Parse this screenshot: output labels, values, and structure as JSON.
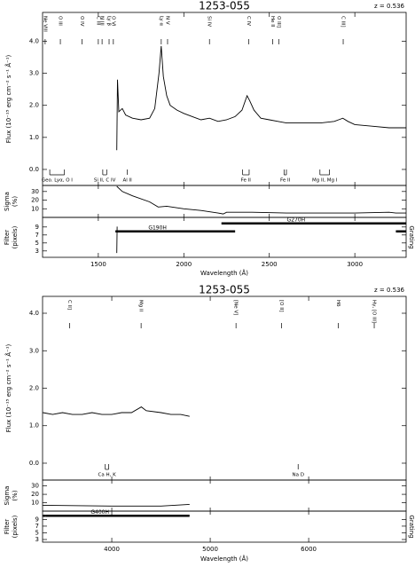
{
  "chart_data": [
    {
      "type": "line",
      "title": "1253-055",
      "annotation": "z = 0.536",
      "ylabel": "Flux (10⁻¹⁵ erg cm⁻² s⁻¹ Å⁻¹)",
      "xlabel": "Wavelength (Å)",
      "xlim": [
        1174,
        3300
      ],
      "xticks": [
        1500,
        2000,
        2500,
        3000
      ],
      "ylim": [
        -0.5,
        4.9
      ],
      "yticks": [
        {
          "value": 0,
          "label": "0.0"
        },
        {
          "value": 1,
          "label": "1.0"
        },
        {
          "value": 2,
          "label": "2.0"
        },
        {
          "value": 3,
          "label": "3.0"
        },
        {
          "value": 4,
          "label": "4.0"
        }
      ],
      "x": [
        1608,
        1612,
        1620,
        1640,
        1660,
        1700,
        1750,
        1800,
        1830,
        1855,
        1868,
        1880,
        1900,
        1920,
        1960,
        2000,
        2050,
        2100,
        2150,
        2200,
        2250,
        2300,
        2340,
        2370,
        2385,
        2410,
        2450,
        2500,
        2550,
        2600,
        2700,
        2800,
        2880,
        2930,
        2960,
        3000,
        3100,
        3200,
        3300
      ],
      "values": [
        0.6,
        2.8,
        1.8,
        1.9,
        1.7,
        1.6,
        1.55,
        1.6,
        1.9,
        3.0,
        3.85,
        2.9,
        2.3,
        2.0,
        1.85,
        1.75,
        1.65,
        1.55,
        1.6,
        1.5,
        1.55,
        1.65,
        1.85,
        2.3,
        2.15,
        1.85,
        1.6,
        1.55,
        1.5,
        1.45,
        1.45,
        1.45,
        1.5,
        1.6,
        1.5,
        1.4,
        1.35,
        1.3,
        1.3
      ],
      "emission_lines": [
        {
          "label": "Ne VIII",
          "x": 1189
        },
        {
          "label": "O III",
          "x": 1278
        },
        {
          "label": "O IV",
          "x": 1405
        },
        {
          "label": "C III",
          "x": 1500
        },
        {
          "label": "N III",
          "x": 1522
        },
        {
          "label": "Ly β",
          "x": 1563
        },
        {
          "label": "O VI",
          "x": 1588
        },
        {
          "label": "Ly α",
          "x": 1868
        },
        {
          "label": "N V",
          "x": 1905
        },
        {
          "label": "Si IV",
          "x": 2150
        },
        {
          "label": "C IV",
          "x": 2380
        },
        {
          "label": "He II",
          "x": 2520
        },
        {
          "label": "O III]",
          "x": 2555
        },
        {
          "label": "C III]",
          "x": 2932
        }
      ],
      "absorption_lines": [
        {
          "label": "Geo. Lyα, O I",
          "x": [
            1216,
            1302
          ]
        },
        {
          "label": "Si II, C IV",
          "x": [
            1526,
            1549
          ]
        },
        {
          "label": "Al II",
          "x": [
            1670
          ]
        },
        {
          "label": "Fe II",
          "x": [
            2344,
            2382
          ]
        },
        {
          "label": "Fe II",
          "x": [
            2586,
            2600
          ]
        },
        {
          "label": "Mg II, Mg I",
          "x": [
            2796,
            2852
          ]
        }
      ],
      "sigma": {
        "label": [
          "Sigma",
          "(%)"
        ],
        "ylim": [
          0,
          37
        ],
        "yticks": [
          10,
          20,
          30
        ],
        "x": [
          1608,
          1640,
          1700,
          1800,
          1850,
          1900,
          2000,
          2100,
          2200,
          2230,
          2250,
          2400,
          2600,
          2800,
          3000,
          3200,
          3240,
          3300
        ],
        "values": [
          36,
          30,
          25,
          18,
          12,
          13,
          10,
          8,
          5,
          4,
          6,
          6,
          5,
          5,
          5,
          6,
          5,
          5
        ]
      },
      "filter": {
        "label": [
          "Filter",
          "(pixels)"
        ],
        "grating_label": "Grating",
        "ylim": [
          1.4,
          11.4
        ],
        "yticks": [
          3,
          5,
          7,
          9
        ],
        "x": [
          1608,
          1610,
          1612
        ],
        "values": [
          2.5,
          9,
          9
        ],
        "gratings": [
          {
            "name": "G190H",
            "range": [
              1600,
              2300
            ]
          },
          {
            "name": "G270H",
            "range": [
              2220,
              3300
            ]
          },
          {
            "range": [
              3240,
              3300
            ]
          }
        ]
      }
    },
    {
      "type": "line",
      "title": "1253-055",
      "annotation": "z = 0.536",
      "ylabel": "Flux (10⁻¹⁵ erg cm⁻² s⁻¹ Å⁻¹)",
      "xlabel": "Wavelength (Å)",
      "xlim": [
        3297,
        6990
      ],
      "xticks": [
        4000,
        5000,
        6000
      ],
      "ylim": [
        -0.45,
        4.45
      ],
      "yticks": [
        {
          "value": 0,
          "label": "0.0"
        },
        {
          "value": 1,
          "label": "1.0"
        },
        {
          "value": 2,
          "label": "2.0"
        },
        {
          "value": 3,
          "label": "3.0"
        },
        {
          "value": 4,
          "label": "4.0"
        }
      ],
      "x": [
        3300,
        3400,
        3500,
        3600,
        3700,
        3800,
        3900,
        4000,
        4100,
        4200,
        4300,
        4350,
        4500,
        4600,
        4700,
        4790
      ],
      "values": [
        1.35,
        1.3,
        1.35,
        1.3,
        1.3,
        1.35,
        1.3,
        1.3,
        1.35,
        1.35,
        1.5,
        1.4,
        1.35,
        1.3,
        1.3,
        1.25
      ],
      "emission_lines": [
        {
          "label": "C II]",
          "x": 3573
        },
        {
          "label": "Mg II",
          "x": 4298
        },
        {
          "label": "[Ne V]",
          "x": 5262
        },
        {
          "label": "[O II]",
          "x": 5725
        },
        {
          "label": "Hδ",
          "x": 6300
        },
        {
          "label": "Hγ, [O III]",
          "x": 6666
        }
      ],
      "absorption_lines": [
        {
          "label": "Ca H, K",
          "x": [
            3934,
            3968
          ]
        },
        {
          "label": "Na D",
          "x": [
            5893
          ]
        }
      ],
      "sigma": {
        "label": [
          "Sigma",
          "(%)"
        ],
        "ylim": [
          0,
          37
        ],
        "yticks": [
          10,
          20,
          30
        ],
        "x": [
          3300,
          4000,
          4500,
          4790
        ],
        "values": [
          7,
          6,
          6,
          8
        ]
      },
      "filter": {
        "label": [
          "Filter",
          "(pixels)"
        ],
        "grating_label": "Grating",
        "ylim": [
          2.2,
          11.5
        ],
        "yticks": [
          3,
          5,
          7,
          9
        ],
        "x": [],
        "values": [],
        "gratings": [
          {
            "range": [
              3300,
              3330
            ]
          },
          {
            "name": "G400H",
            "range": [
              3330,
              4790
            ]
          }
        ]
      }
    }
  ]
}
